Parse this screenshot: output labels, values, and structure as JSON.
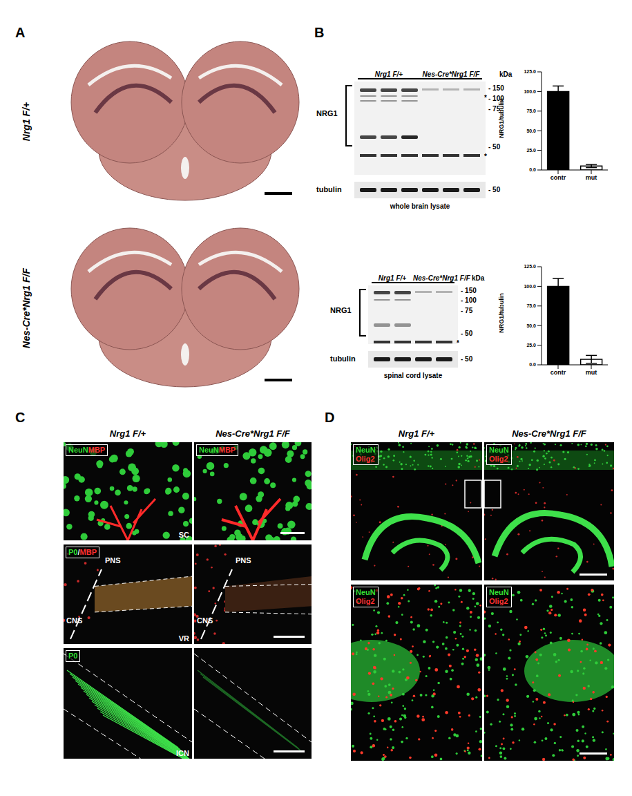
{
  "panels": {
    "A": {
      "label": "A",
      "rows": [
        "Nrg1 F/+",
        "Nes-Cre*Nrg1 F/F"
      ]
    },
    "B": {
      "label": "B",
      "blots": [
        {
          "groups": [
            "Nrg1 F/+",
            "Nes-Cre*Nrg1 F/F"
          ],
          "protein": "NRG1",
          "loading": "tubulin",
          "caption": "whole brain lysate",
          "unit": "kDa",
          "markers": [
            150,
            100,
            75,
            50
          ],
          "loading_marker": 50,
          "asterisks": [
            "*",
            "*"
          ]
        },
        {
          "groups": [
            "Nrg1 F/+",
            "Nes-Cre*Nrg1 F/F"
          ],
          "protein": "NRG1",
          "loading": "tubulin",
          "caption": "spinal cord lysate",
          "unit": "kDa",
          "markers": [
            150,
            100,
            75,
            50
          ],
          "loading_marker": 50,
          "asterisks": [
            "*"
          ]
        }
      ]
    },
    "C": {
      "label": "C",
      "columns": [
        "Nrg1 F/+",
        "Nes-Cre*Nrg1 F/F"
      ],
      "rows": [
        {
          "stains": [
            {
              "text": "NeuN",
              "color": "#33dd33"
            },
            {
              "text": "MBP",
              "color": "#ff3030"
            }
          ],
          "repeat": true,
          "region": "SC"
        },
        {
          "stains": [
            {
              "text": "P0",
              "color": "#33dd33"
            },
            {
              "text": "/",
              "color": "#ffffff"
            },
            {
              "text": "MBP",
              "color": "#ff3030"
            }
          ],
          "repeat": false,
          "region": "VR",
          "annotations": [
            "PNS",
            "CNS"
          ]
        },
        {
          "stains": [
            {
              "text": "P0",
              "color": "#33dd33"
            }
          ],
          "repeat": false,
          "region": "ICN"
        }
      ]
    },
    "D": {
      "label": "D",
      "columns": [
        "Nrg1 F/+",
        "Nes-Cre*Nrg1 F/F"
      ],
      "stains": [
        {
          "text": "NeuN",
          "color": "#33dd33"
        },
        {
          "text": "Olig2",
          "color": "#ff3030"
        }
      ]
    }
  },
  "chart_data": [
    {
      "type": "bar",
      "categories": [
        "contr",
        "mut"
      ],
      "values": [
        100,
        5
      ],
      "errors": [
        7,
        2
      ],
      "y_label": "NRG1/tubulin",
      "ylim": [
        0,
        125
      ],
      "yticks": [
        {
          "value": 0,
          "label": "0.0"
        },
        {
          "value": 25,
          "label": "25.0"
        },
        {
          "value": 50,
          "label": "50.0"
        },
        {
          "value": 75,
          "label": "75.0"
        },
        {
          "value": 100,
          "label": "100.0"
        },
        {
          "value": 125,
          "label": "125.0"
        }
      ],
      "colors": [
        "#000000",
        "#ffffff"
      ],
      "grid": false
    },
    {
      "type": "bar",
      "categories": [
        "contr",
        "mut"
      ],
      "values": [
        100,
        7
      ],
      "errors": [
        10,
        5
      ],
      "y_label": "NRG1/tubulin",
      "ylim": [
        0,
        125
      ],
      "yticks": [
        {
          "value": 0,
          "label": "0.0"
        },
        {
          "value": 25,
          "label": "25.0"
        },
        {
          "value": 50,
          "label": "50.0"
        },
        {
          "value": 75,
          "label": "75.0"
        },
        {
          "value": 100,
          "label": "100.0"
        },
        {
          "value": 125,
          "label": "125.0"
        }
      ],
      "colors": [
        "#000000",
        "#ffffff"
      ],
      "grid": false
    }
  ]
}
